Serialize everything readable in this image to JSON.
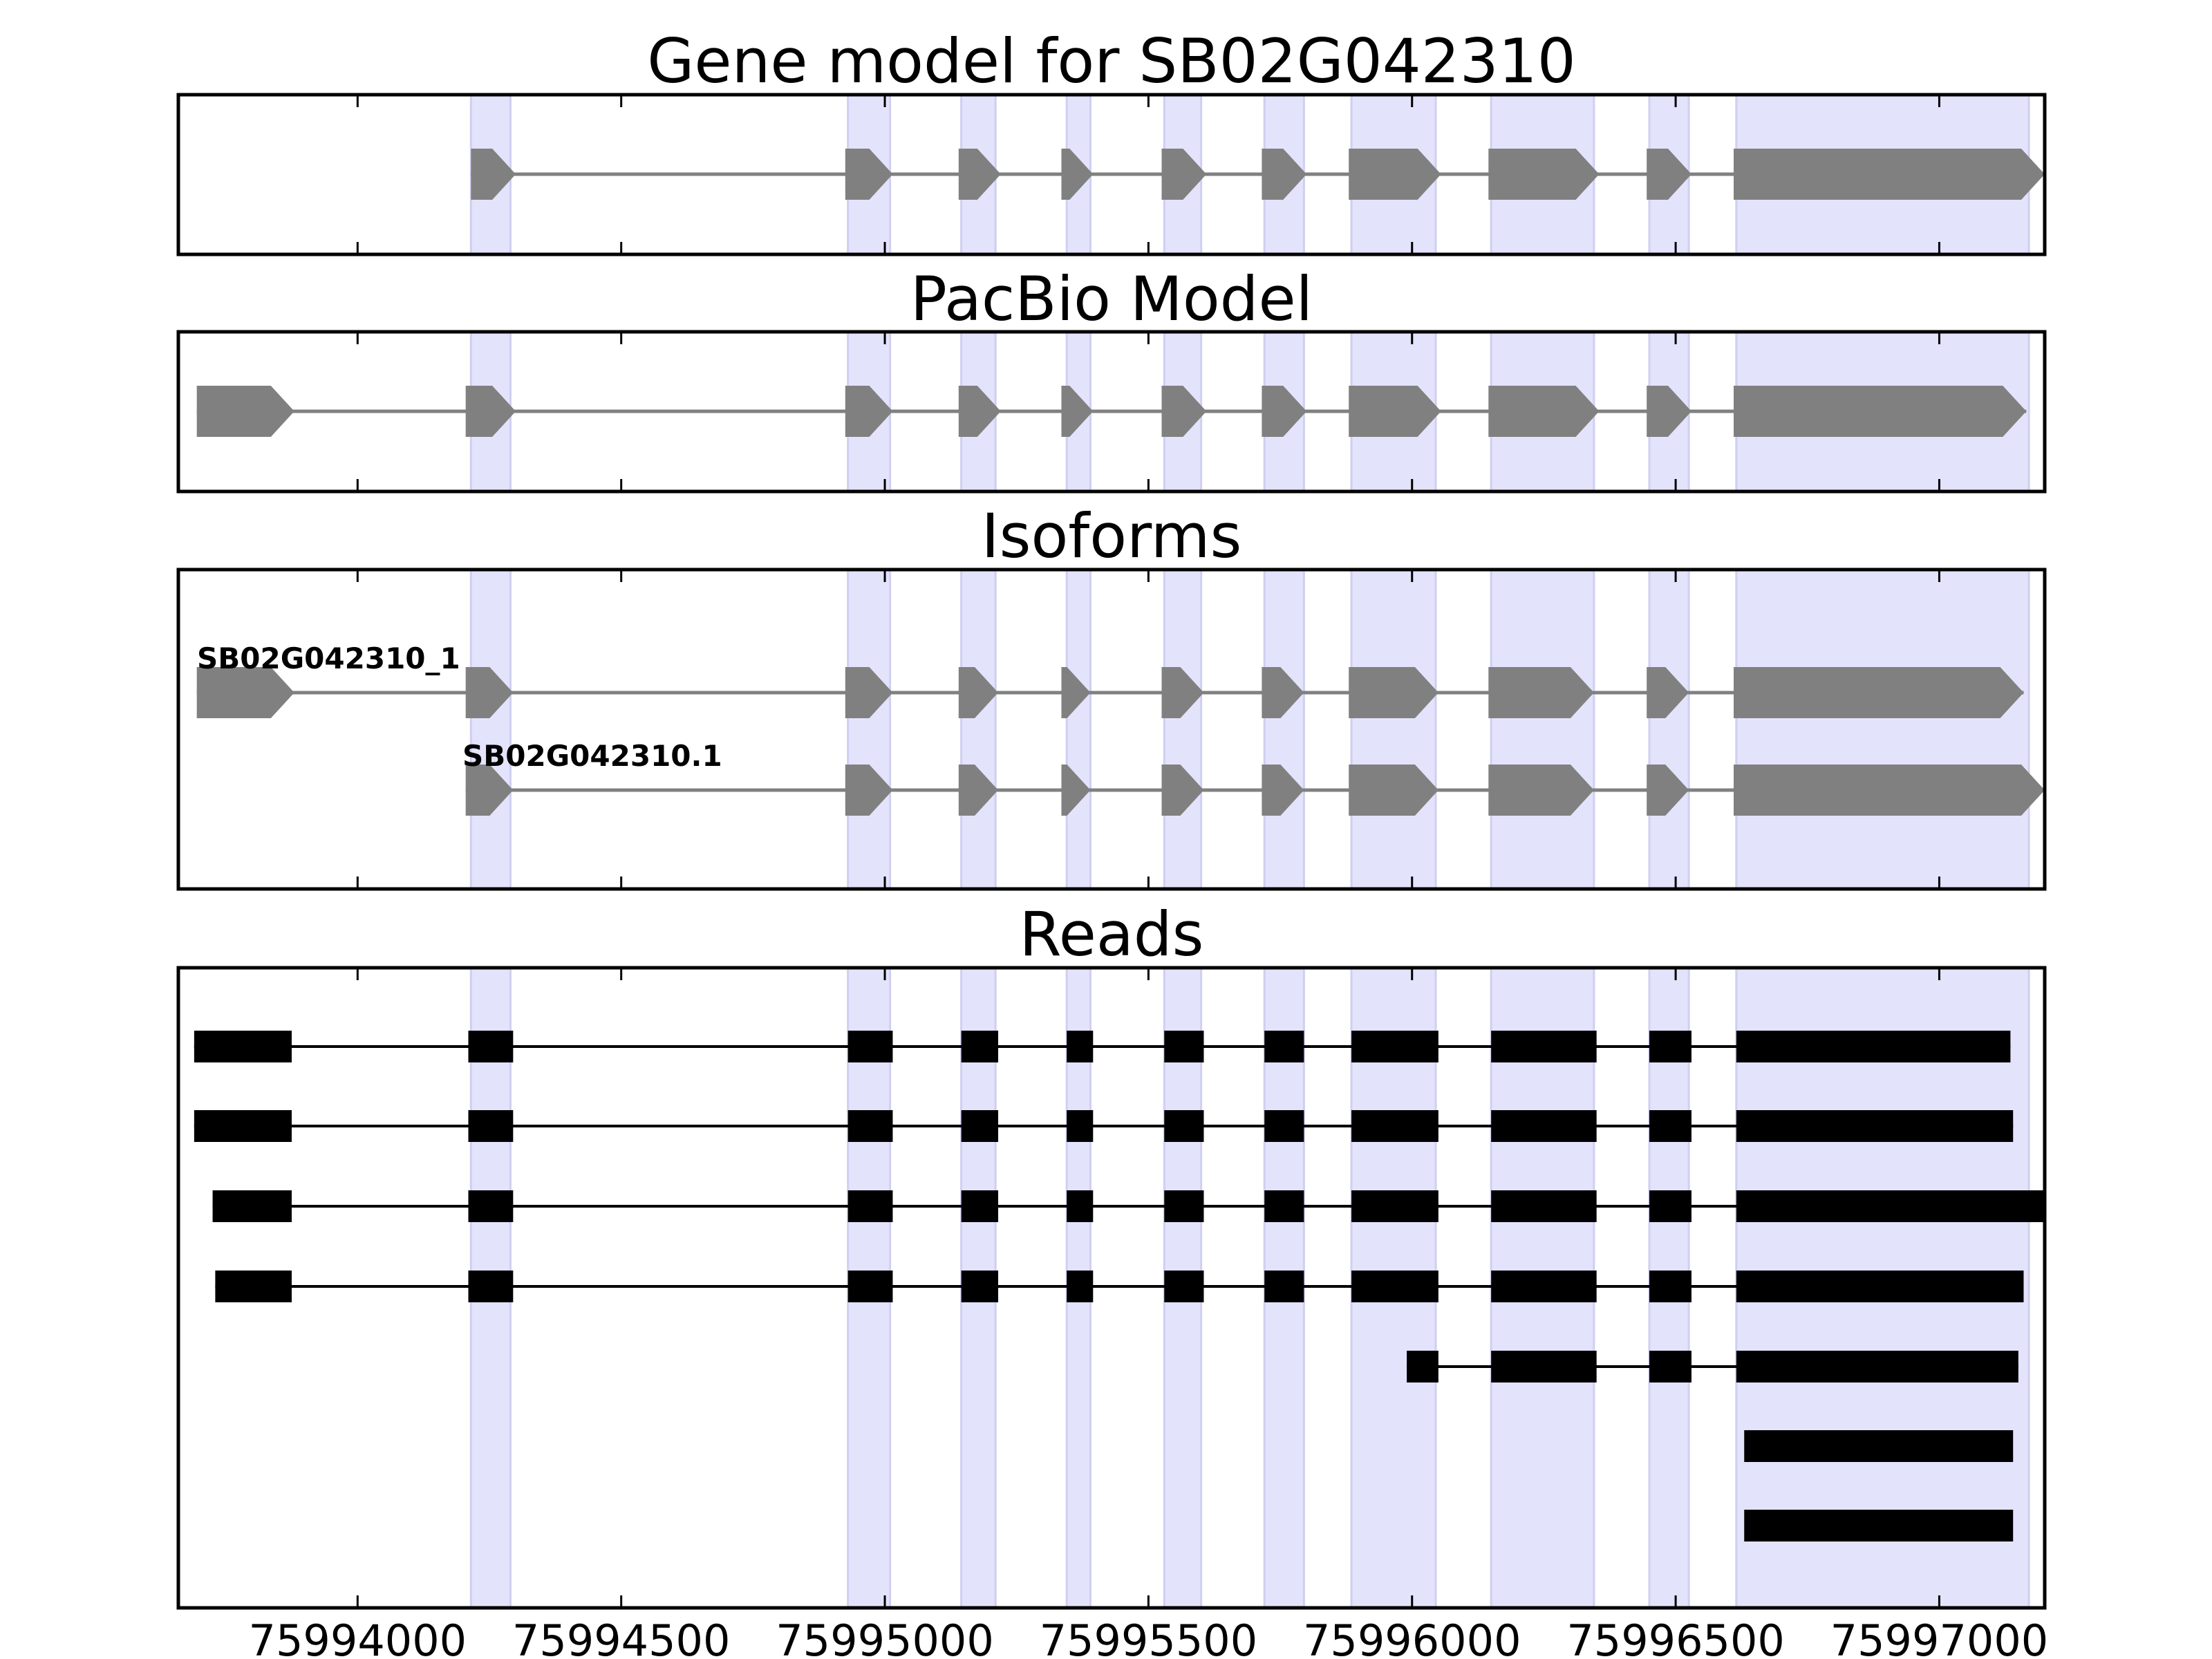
{
  "chart_data": {
    "type": "gene-structure",
    "x_axis": {
      "xlim": [
        75993660,
        75997200
      ],
      "ticks": [
        75994000,
        75994500,
        75995000,
        75995500,
        75996000,
        75996500,
        75997000
      ],
      "tick_labels": [
        "75994000",
        "75994500",
        "75995000",
        "75995500",
        "75996000",
        "75996500",
        "75997000"
      ]
    },
    "highlight_regions": [
      [
        75994215,
        75994290
      ],
      [
        75994930,
        75995010
      ],
      [
        75995145,
        75995210
      ],
      [
        75995345,
        75995390
      ],
      [
        75995530,
        75995600
      ],
      [
        75995720,
        75995795
      ],
      [
        75995885,
        75996045
      ],
      [
        75996150,
        75996345
      ],
      [
        75996450,
        75996525
      ],
      [
        75996615,
        75997170
      ]
    ],
    "colors": {
      "highlight": "#e3e3fc",
      "highlight_edge": "#cfcff2",
      "exon": "#808080",
      "intron": "#808080",
      "read": "#000000",
      "frame": "#000000"
    },
    "panels": [
      {
        "title": "Gene model for SB02G042310",
        "kind": "model",
        "tracks": [
          {
            "label": "",
            "exons": [
              [
                75994215,
                75994300
              ],
              [
                75994925,
                75995015
              ],
              [
                75995140,
                75995220
              ],
              [
                75995335,
                75995395
              ],
              [
                75995525,
                75995610
              ],
              [
                75995715,
                75995800
              ],
              [
                75995880,
                75996055
              ],
              [
                75996145,
                75996355
              ],
              [
                75996445,
                75996530
              ],
              [
                75996610,
                75997200
              ]
            ]
          }
        ]
      },
      {
        "title": "PacBio Model",
        "kind": "model",
        "tracks": [
          {
            "label": "",
            "exons": [
              [
                75993695,
                75993880
              ],
              [
                75994205,
                75994300
              ],
              [
                75994925,
                75995015
              ],
              [
                75995140,
                75995220
              ],
              [
                75995335,
                75995395
              ],
              [
                75995525,
                75995610
              ],
              [
                75995715,
                75995800
              ],
              [
                75995880,
                75996055
              ],
              [
                75996145,
                75996355
              ],
              [
                75996445,
                75996530
              ],
              [
                75996610,
                75997165
              ]
            ]
          }
        ]
      },
      {
        "title": "Isoforms",
        "kind": "model",
        "tracks": [
          {
            "label": "SB02G042310_1",
            "exons": [
              [
                75993695,
                75993880
              ],
              [
                75994205,
                75994295
              ],
              [
                75994925,
                75995015
              ],
              [
                75995140,
                75995215
              ],
              [
                75995335,
                75995390
              ],
              [
                75995525,
                75995605
              ],
              [
                75995715,
                75995795
              ],
              [
                75995880,
                75996050
              ],
              [
                75996145,
                75996345
              ],
              [
                75996445,
                75996525
              ],
              [
                75996610,
                75997160
              ]
            ]
          },
          {
            "label": "SB02G042310.1",
            "exons": [
              [
                75994205,
                75994295
              ],
              [
                75994925,
                75995015
              ],
              [
                75995140,
                75995215
              ],
              [
                75995335,
                75995390
              ],
              [
                75995525,
                75995605
              ],
              [
                75995715,
                75995795
              ],
              [
                75995880,
                75996050
              ],
              [
                75996145,
                75996345
              ],
              [
                75996445,
                75996525
              ],
              [
                75996610,
                75997200
              ]
            ]
          }
        ]
      },
      {
        "title": "Reads",
        "kind": "reads",
        "tracks": [
          {
            "exons": [
              [
                75993690,
                75993875
              ],
              [
                75994210,
                75994295
              ],
              [
                75994930,
                75995015
              ],
              [
                75995145,
                75995215
              ],
              [
                75995345,
                75995395
              ],
              [
                75995530,
                75995605
              ],
              [
                75995720,
                75995795
              ],
              [
                75995885,
                75996050
              ],
              [
                75996150,
                75996350
              ],
              [
                75996450,
                75996530
              ],
              [
                75996615,
                75997135
              ]
            ]
          },
          {
            "exons": [
              [
                75993690,
                75993875
              ],
              [
                75994210,
                75994295
              ],
              [
                75994930,
                75995015
              ],
              [
                75995145,
                75995215
              ],
              [
                75995345,
                75995395
              ],
              [
                75995530,
                75995605
              ],
              [
                75995720,
                75995795
              ],
              [
                75995885,
                75996050
              ],
              [
                75996150,
                75996350
              ],
              [
                75996450,
                75996530
              ],
              [
                75996615,
                75997140
              ]
            ]
          },
          {
            "exons": [
              [
                75993725,
                75993875
              ],
              [
                75994210,
                75994295
              ],
              [
                75994930,
                75995015
              ],
              [
                75995145,
                75995215
              ],
              [
                75995345,
                75995395
              ],
              [
                75995530,
                75995605
              ],
              [
                75995720,
                75995795
              ],
              [
                75995885,
                75996050
              ],
              [
                75996150,
                75996350
              ],
              [
                75996450,
                75996530
              ],
              [
                75996615,
                75997200
              ]
            ]
          },
          {
            "exons": [
              [
                75993730,
                75993875
              ],
              [
                75994210,
                75994295
              ],
              [
                75994930,
                75995015
              ],
              [
                75995145,
                75995215
              ],
              [
                75995345,
                75995395
              ],
              [
                75995530,
                75995605
              ],
              [
                75995720,
                75995795
              ],
              [
                75995885,
                75996050
              ],
              [
                75996150,
                75996350
              ],
              [
                75996450,
                75996530
              ],
              [
                75996615,
                75997160
              ]
            ]
          },
          {
            "exons": [
              [
                75995990,
                75996050
              ],
              [
                75996150,
                75996350
              ],
              [
                75996450,
                75996530
              ],
              [
                75996615,
                75997150
              ]
            ]
          },
          {
            "exons": [
              [
                75996630,
                75997140
              ]
            ]
          },
          {
            "exons": [
              [
                75996630,
                75997140
              ]
            ]
          }
        ]
      }
    ]
  }
}
